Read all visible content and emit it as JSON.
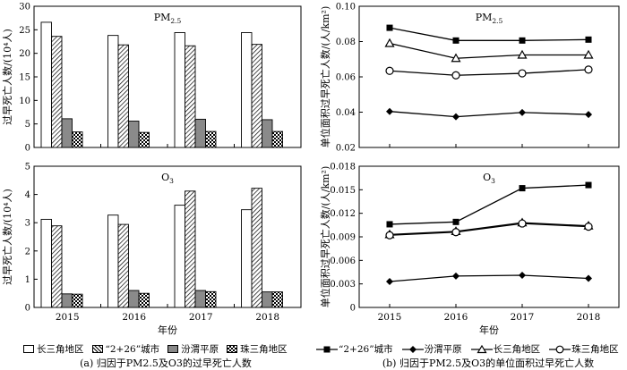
{
  "chart_data": [
    {
      "id": "a-top",
      "type": "bar",
      "title": "PM2.5",
      "title_main": "PM",
      "title_sub": "2.5",
      "ylabel": "过早死亡人数/(10⁴人)",
      "ylim": [
        0,
        30
      ],
      "yticks": [
        "0",
        "5",
        "10",
        "15",
        "20",
        "25",
        "30"
      ],
      "yticks_values": [
        0,
        5,
        10,
        15,
        20,
        25,
        30
      ],
      "categories": [
        "2015",
        "2016",
        "2017",
        "2018"
      ],
      "series": [
        {
          "name": "长三角地区",
          "pattern": "white",
          "values": [
            26.6,
            23.8,
            24.4,
            24.4
          ]
        },
        {
          "name": "“2+26”城市",
          "pattern": "hatch",
          "values": [
            23.6,
            21.8,
            21.6,
            21.9
          ]
        },
        {
          "name": "汾渭平原",
          "pattern": "gray",
          "values": [
            6.1,
            5.6,
            6.0,
            5.9
          ]
        },
        {
          "name": "珠三角地区",
          "pattern": "check",
          "values": [
            3.3,
            3.2,
            3.4,
            3.4
          ]
        }
      ]
    },
    {
      "id": "a-bottom",
      "type": "bar",
      "title": "O3",
      "title_main": "O",
      "title_sub": "3",
      "ylabel": "过早死亡人数/(10⁴人)",
      "ylim": [
        0,
        5
      ],
      "yticks": [
        "0",
        "1",
        "2",
        "3",
        "4",
        "5"
      ],
      "yticks_values": [
        0,
        1,
        2,
        3,
        4,
        5
      ],
      "xlabel": "年份",
      "categories": [
        "2015",
        "2016",
        "2017",
        "2018"
      ],
      "series": [
        {
          "name": "长三角地区",
          "pattern": "white",
          "values": [
            3.12,
            3.27,
            3.62,
            3.46
          ]
        },
        {
          "name": "“2+26”城市",
          "pattern": "hatch",
          "values": [
            2.89,
            2.94,
            4.12,
            4.22
          ]
        },
        {
          "name": "汾渭平原",
          "pattern": "gray",
          "values": [
            0.48,
            0.6,
            0.6,
            0.55
          ]
        },
        {
          "name": "珠三角地区",
          "pattern": "check",
          "values": [
            0.47,
            0.5,
            0.56,
            0.55
          ]
        }
      ]
    },
    {
      "id": "b-top",
      "type": "line",
      "title": "PM2.5",
      "title_main": "PM",
      "title_sub": "2.5",
      "ylabel": "单位面积过早死亡人数/(人/km²)",
      "ylim": [
        0.02,
        0.1
      ],
      "yticks": [
        "0.02",
        "0.04",
        "0.06",
        "0.08",
        "0.10"
      ],
      "yticks_values": [
        0.02,
        0.04,
        0.06,
        0.08,
        0.1
      ],
      "x": [
        "2015",
        "2016",
        "2017",
        "2018"
      ],
      "series": [
        {
          "name": "“2+26”城市",
          "marker": "square",
          "values": [
            0.0878,
            0.0806,
            0.0806,
            0.0811
          ]
        },
        {
          "name": "汾渭平原",
          "marker": "diamond",
          "values": [
            0.0404,
            0.0374,
            0.0398,
            0.0387
          ]
        },
        {
          "name": "长三角地区",
          "marker": "triangle",
          "values": [
            0.079,
            0.0705,
            0.0724,
            0.0724
          ]
        },
        {
          "name": "珠三角地区",
          "marker": "circle",
          "values": [
            0.0634,
            0.0609,
            0.062,
            0.0641
          ]
        }
      ]
    },
    {
      "id": "b-bottom",
      "type": "line",
      "title": "O3",
      "title_main": "O",
      "title_sub": "3",
      "ylabel": "单位面积过早死亡人数/(人/km²)",
      "ylim": [
        0,
        0.018
      ],
      "yticks": [
        "0",
        "0.003",
        "0.006",
        "0.009",
        "0.012",
        "0.015",
        "0.018"
      ],
      "yticks_values": [
        0,
        0.003,
        0.006,
        0.009,
        0.012,
        0.015,
        0.018
      ],
      "xlabel": "年份",
      "x": [
        "2015",
        "2016",
        "2017",
        "2018"
      ],
      "series": [
        {
          "name": "“2+26”城市",
          "marker": "square",
          "values": [
            0.0106,
            0.0109,
            0.0152,
            0.0156
          ]
        },
        {
          "name": "汾渭平原",
          "marker": "diamond",
          "values": [
            0.0033,
            0.004,
            0.0041,
            0.0037
          ]
        },
        {
          "name": "长三角地区",
          "marker": "triangle",
          "values": [
            0.0093,
            0.0097,
            0.0108,
            0.0104
          ]
        },
        {
          "name": "珠三角地区",
          "marker": "circle",
          "values": [
            0.0092,
            0.0096,
            0.0107,
            0.0103
          ]
        }
      ]
    }
  ],
  "legend_left": [
    {
      "label": "长三角地区",
      "pattern": "white"
    },
    {
      "label": "“2+26”城市",
      "pattern": "hatch"
    },
    {
      "label": "汾渭平原",
      "pattern": "gray"
    },
    {
      "label": "珠三角地区",
      "pattern": "check"
    }
  ],
  "legend_right": [
    {
      "label": "“2+26”城市",
      "marker": "square"
    },
    {
      "label": "汾渭平原",
      "marker": "diamond"
    },
    {
      "label": "长三角地区",
      "marker": "triangle"
    },
    {
      "label": "珠三角地区",
      "marker": "circle"
    }
  ],
  "captions": {
    "a": "(a) 归因于PM2.5及O3的过早死亡人数",
    "b": "(b) 归因于PM2.5及O3的单位面积过早死亡人数"
  }
}
